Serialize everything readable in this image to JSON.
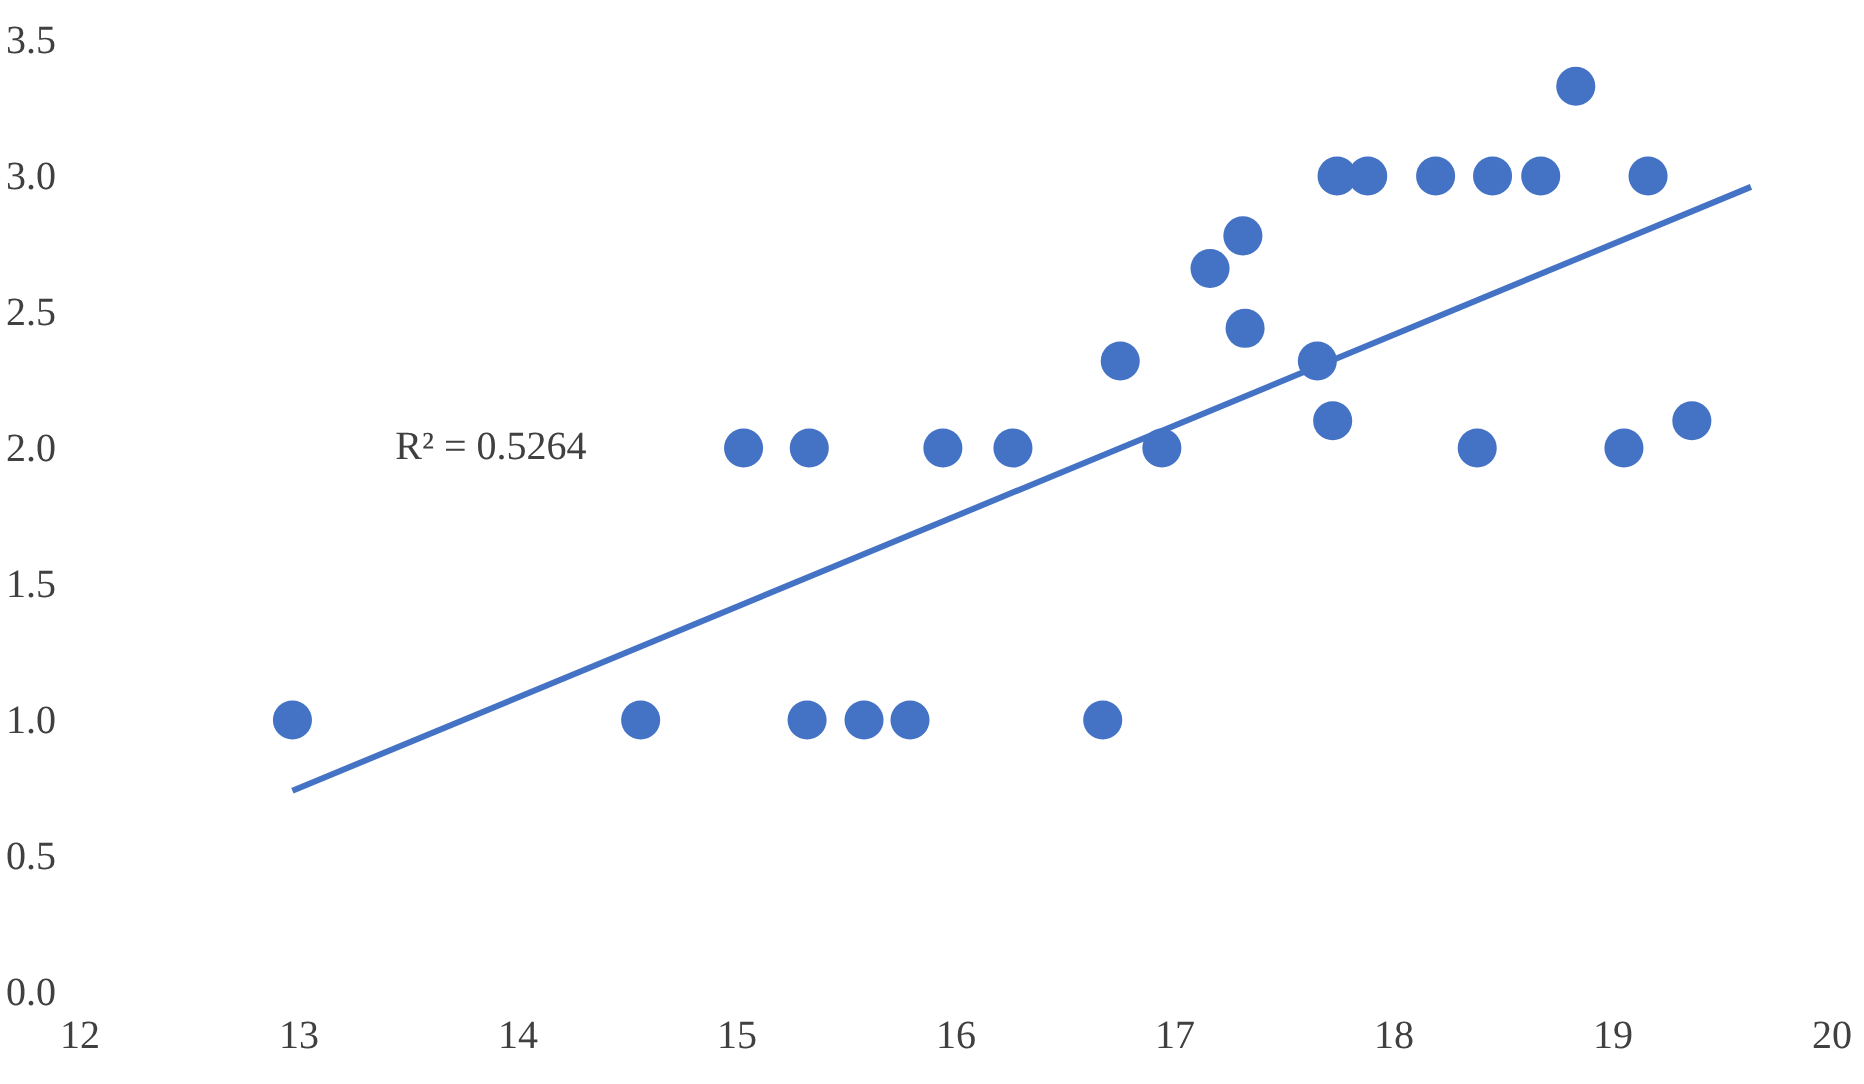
{
  "chart_data": {
    "type": "scatter",
    "xlim": [
      12,
      20
    ],
    "xticks": [
      12,
      13,
      14,
      15,
      16,
      17,
      18,
      19,
      20
    ],
    "ylim": [
      0,
      3.5
    ],
    "yticks": [
      {
        "value": 0,
        "label": "0.0"
      },
      {
        "value": 0.5,
        "label": "0.5"
      },
      {
        "value": 1,
        "label": "1.0"
      },
      {
        "value": 1.5,
        "label": "1.5"
      },
      {
        "value": 2,
        "label": "2.0"
      },
      {
        "value": 2.5,
        "label": "2.5"
      },
      {
        "value": 3,
        "label": "3.0"
      },
      {
        "value": 3.5,
        "label": "3.5"
      }
    ],
    "grid": false,
    "marker": "circle",
    "annotations": [
      "R² = 0.5264"
    ],
    "series": [
      {
        "color": "#4472c4",
        "x": [
          12.97,
          14.56,
          15.03,
          15.33,
          15.32,
          15.58,
          15.79,
          15.94,
          16.26,
          16.67,
          16.75,
          16.94,
          17.16,
          17.31,
          17.32,
          17.65,
          17.72,
          17.74,
          17.88,
          18.19,
          18.38,
          18.45,
          18.67,
          18.83,
          19.05,
          19.16,
          19.36
        ],
        "values": [
          1.0,
          1.0,
          2.0,
          2.0,
          1.0,
          1.0,
          1.0,
          2.0,
          2.0,
          1.0,
          2.32,
          2.0,
          2.66,
          2.78,
          2.44,
          2.32,
          2.1,
          3.0,
          3.0,
          3.0,
          2.0,
          3.0,
          3.0,
          3.33,
          2.0,
          3.0,
          2.1
        ]
      },
      {
        "type": "line",
        "color": "#4472c4",
        "line_style": "solid",
        "marker": "none",
        "x": [
          12.97,
          19.63
        ],
        "values": [
          0.74,
          2.96
        ]
      }
    ]
  }
}
